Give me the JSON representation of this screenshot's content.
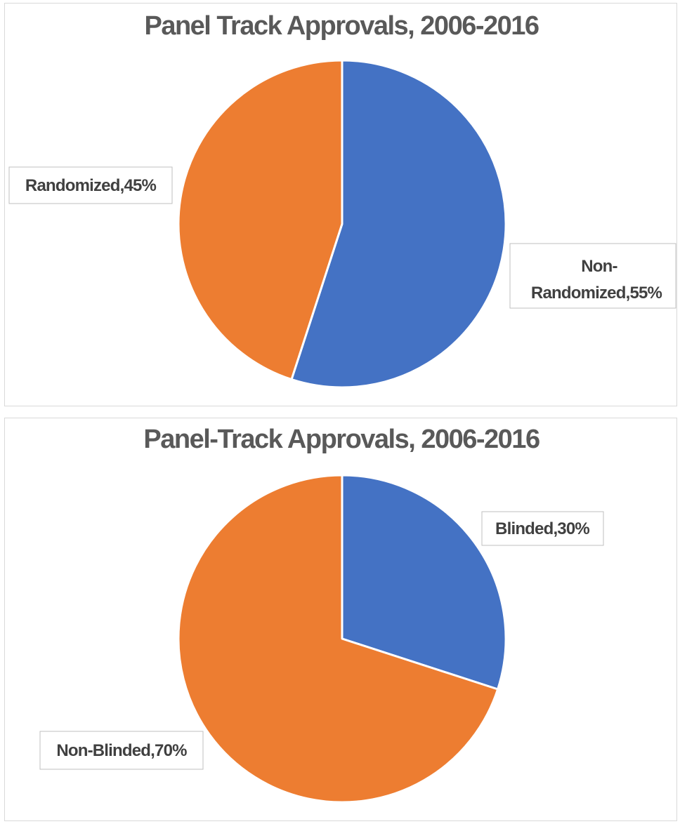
{
  "chart_data": [
    {
      "type": "pie",
      "title": "Panel Track Approvals, 2006-2016",
      "slices": [
        {
          "label": "Non-Randomized",
          "value": 55,
          "display": [
            "Non-",
            "Randomized,55%"
          ],
          "color": "#4472c4"
        },
        {
          "label": "Randomized",
          "value": 45,
          "display": [
            "Randomized,45%"
          ],
          "color": "#ed7d31"
        }
      ],
      "legend": "none",
      "start_angle": "12 o'clock, clockwise"
    },
    {
      "type": "pie",
      "title": "Panel-Track Approvals, 2006-2016",
      "slices": [
        {
          "label": "Blinded",
          "value": 30,
          "display": [
            "Blinded,30%"
          ],
          "color": "#4472c4"
        },
        {
          "label": "Non-Blinded",
          "value": 70,
          "display": [
            "Non-Blinded,70%"
          ],
          "color": "#ed7d31"
        }
      ],
      "legend": "none",
      "start_angle": "12 o'clock, clockwise"
    }
  ]
}
